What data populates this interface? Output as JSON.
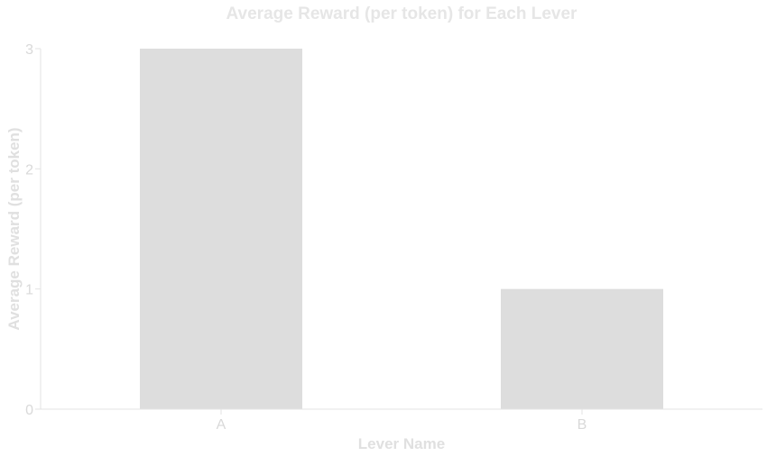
{
  "chart_data": {
    "type": "bar",
    "title": "Average Reward (per token) for Each Lever",
    "xlabel": "Lever Name",
    "ylabel": "Average Reward (per token)",
    "categories": [
      "A",
      "B"
    ],
    "values": [
      3,
      1
    ],
    "ylim": [
      0,
      3
    ],
    "yticks": [
      "0",
      "1",
      "2",
      "3"
    ],
    "grid": false,
    "legend": "none",
    "colors": {
      "bar": "#dddddd",
      "axis": "#e3e3e3",
      "text": "#d9d9d9"
    }
  }
}
